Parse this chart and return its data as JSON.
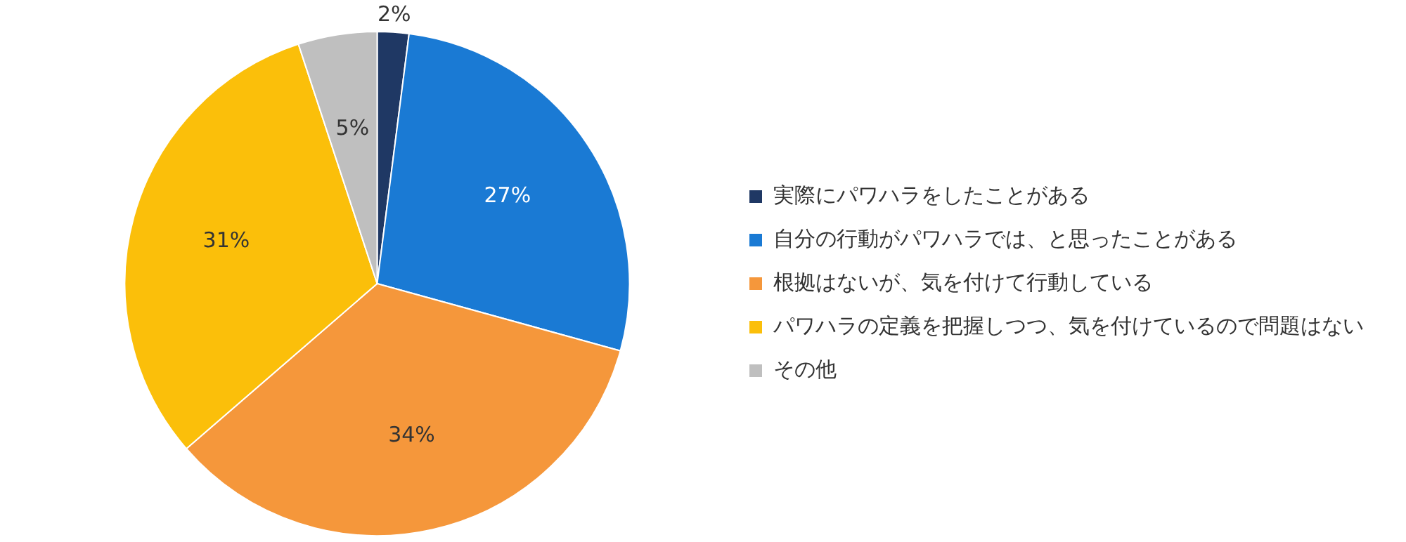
{
  "chart_data": {
    "type": "pie",
    "categories": [
      "実際にパワハラをしたことがある",
      "自分の行動がパワハラでは、と思ったことがある",
      "根拠はないが、気を付けて行動している",
      "パワハラの定義を把握しつつ、気を付けているので問題はない",
      "その他"
    ],
    "values": [
      2,
      27,
      34,
      31,
      5
    ],
    "colors": [
      "#1f3864",
      "#1a7ad4",
      "#f5973b",
      "#fbbf0a",
      "#bfbfbf"
    ],
    "value_labels": [
      "2%",
      "27%",
      "34%",
      "31%",
      "5%"
    ],
    "legend": "right"
  }
}
